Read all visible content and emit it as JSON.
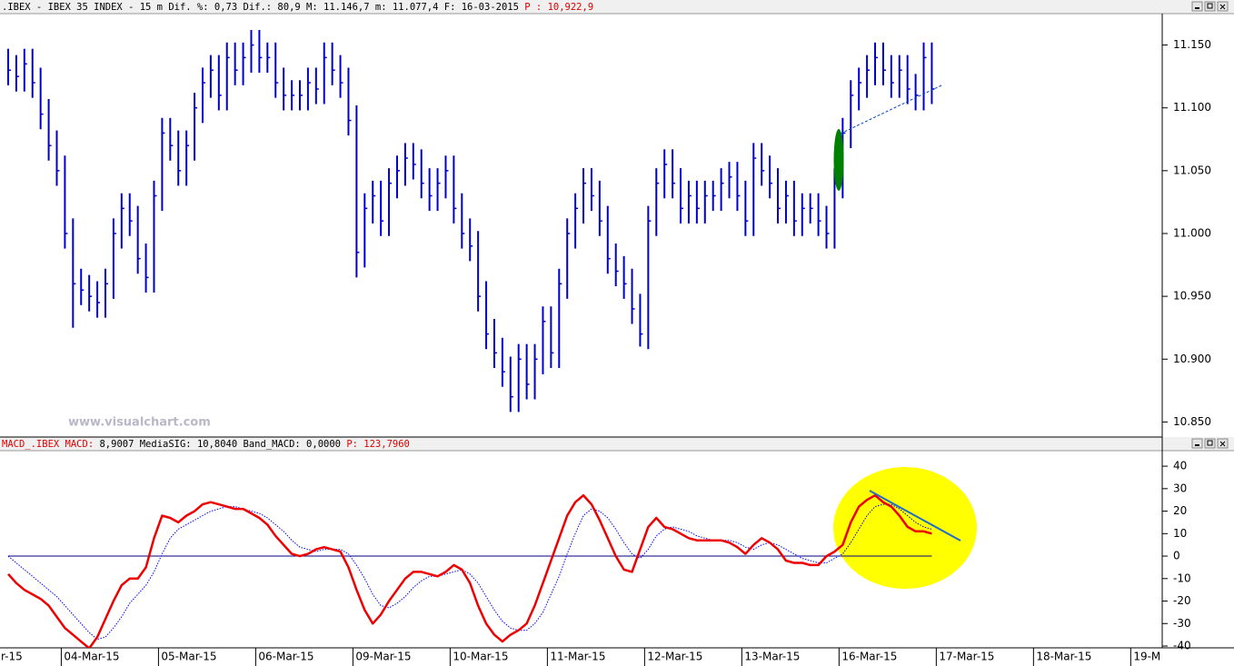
{
  "chart_data": [
    {
      "type": "hlc",
      "header": ".IBEX - IBEX 35 INDEX -  15 m Dif. %: 0,73 Dif.: 80,9 M: 11.146,7 m: 11.077,4 F: 16-03-2015",
      "header_price": "P : 10,922,9",
      "watermark": "www.visualchart.com",
      "color": "#0000cc",
      "xlim": [
        0,
        143
      ],
      "ylim": [
        10.838,
        11.175
      ],
      "yticks": [
        {
          "value": 10.85,
          "label": "10.850"
        },
        {
          "value": 10.9,
          "label": "10.900"
        },
        {
          "value": 10.95,
          "label": "10.950"
        },
        {
          "value": 11.0,
          "label": "11.000"
        },
        {
          "value": 11.05,
          "label": "11.050"
        },
        {
          "value": 11.1,
          "label": "11.100"
        },
        {
          "value": 11.15,
          "label": "11.150"
        }
      ],
      "high": [
        11.147,
        11.142,
        11.147,
        11.147,
        11.132,
        11.107,
        11.082,
        11.062,
        11.012,
        10.972,
        10.967,
        10.962,
        10.972,
        11.012,
        11.032,
        11.032,
        11.022,
        10.992,
        11.042,
        11.092,
        11.092,
        11.082,
        11.082,
        11.112,
        11.132,
        11.142,
        11.142,
        11.152,
        11.152,
        11.152,
        11.162,
        11.162,
        11.152,
        11.152,
        11.132,
        11.122,
        11.122,
        11.132,
        11.132,
        11.152,
        11.152,
        11.142,
        11.132,
        11.102,
        11.032,
        11.042,
        11.042,
        11.052,
        11.062,
        11.072,
        11.072,
        11.067,
        11.052,
        11.052,
        11.062,
        11.062,
        11.032,
        11.012,
        11.002,
        10.962,
        10.932,
        10.917,
        10.902,
        10.912,
        10.912,
        10.912,
        10.942,
        10.942,
        10.972,
        11.012,
        11.032,
        11.052,
        11.052,
        11.042,
        11.022,
        10.992,
        10.982,
        10.972,
        10.952,
        11.022,
        11.052,
        11.067,
        11.067,
        11.052,
        11.042,
        11.042,
        11.042,
        11.042,
        11.052,
        11.057,
        11.057,
        11.042,
        11.072,
        11.072,
        11.062,
        11.052,
        11.042,
        11.042,
        11.032,
        11.032,
        11.032,
        11.022,
        11.052,
        11.092,
        11.122,
        11.132,
        11.142,
        11.152,
        11.152,
        11.142,
        11.142,
        11.142,
        11.127,
        11.152,
        11.152
      ],
      "low": [
        11.118,
        11.113,
        11.113,
        11.108,
        11.083,
        11.058,
        11.038,
        10.988,
        10.925,
        10.943,
        10.938,
        10.933,
        10.933,
        10.948,
        10.988,
        10.998,
        10.968,
        10.953,
        10.953,
        11.018,
        11.058,
        11.038,
        11.038,
        11.058,
        11.088,
        11.108,
        11.098,
        11.098,
        11.118,
        11.118,
        11.128,
        11.128,
        11.128,
        11.108,
        11.098,
        11.098,
        11.098,
        11.098,
        11.103,
        11.103,
        11.118,
        11.108,
        11.078,
        10.965,
        10.973,
        11.008,
        10.998,
        10.998,
        11.028,
        11.038,
        11.043,
        11.028,
        11.018,
        11.018,
        11.028,
        11.008,
        10.988,
        10.978,
        10.938,
        10.908,
        10.893,
        10.878,
        10.858,
        10.858,
        10.868,
        10.868,
        10.888,
        10.893,
        10.893,
        10.948,
        10.988,
        11.008,
        11.018,
        10.998,
        10.968,
        10.958,
        10.948,
        10.928,
        10.91,
        10.908,
        10.998,
        11.028,
        11.028,
        11.008,
        11.008,
        11.008,
        11.008,
        11.018,
        11.018,
        11.028,
        11.018,
        10.998,
        10.998,
        11.038,
        11.028,
        11.008,
        11.008,
        10.998,
        10.998,
        11.008,
        10.998,
        10.988,
        10.988,
        11.028,
        11.068,
        11.098,
        11.108,
        11.118,
        11.118,
        11.108,
        11.108,
        11.103,
        11.098,
        11.098,
        11.103
      ],
      "close": [
        11.13,
        11.125,
        11.135,
        11.12,
        11.095,
        11.07,
        11.05,
        11.0,
        10.96,
        10.955,
        10.95,
        10.945,
        10.96,
        11.0,
        11.02,
        11.01,
        10.98,
        10.965,
        11.03,
        11.08,
        11.07,
        11.05,
        11.07,
        11.1,
        11.12,
        11.13,
        11.11,
        11.14,
        11.13,
        11.14,
        11.15,
        11.14,
        11.14,
        11.12,
        11.11,
        11.11,
        11.11,
        11.12,
        11.115,
        11.14,
        11.13,
        11.12,
        11.09,
        10.985,
        11.02,
        11.03,
        11.01,
        11.04,
        11.05,
        11.06,
        11.055,
        11.04,
        11.03,
        11.04,
        11.05,
        11.02,
        11.0,
        10.99,
        10.95,
        10.92,
        10.905,
        10.89,
        10.87,
        10.9,
        10.88,
        10.9,
        10.93,
        10.905,
        10.96,
        11.0,
        11.02,
        11.04,
        11.03,
        11.01,
        10.98,
        10.97,
        10.96,
        10.94,
        10.92,
        11.01,
        11.04,
        11.055,
        11.04,
        11.02,
        11.03,
        11.02,
        11.03,
        11.03,
        11.04,
        11.045,
        11.03,
        11.01,
        11.06,
        11.05,
        11.04,
        11.02,
        11.03,
        11.01,
        11.02,
        11.02,
        11.01,
        11.0,
        11.04,
        11.08,
        11.11,
        11.12,
        11.13,
        11.14,
        11.13,
        11.12,
        11.13,
        11.115,
        11.11,
        11.14,
        11.115
      ]
    },
    {
      "type": "line",
      "header": "MACD_.IBEX MACD:",
      "header_values": "8,9007 MediaSIG: 10,8040 Band_MACD: 0,0000",
      "header_price": "P: 123,7960",
      "xlim": [
        0,
        143
      ],
      "ylim": [
        -40.8,
        46.5
      ],
      "yticks": [
        -40,
        -30,
        -20,
        -10,
        0,
        10,
        20,
        30,
        40
      ],
      "band": 0,
      "band_color": "#000080",
      "xticks": [
        {
          "value": -5,
          "label": "r-15"
        },
        {
          "value": 7,
          "label": "04-Mar-15"
        },
        {
          "value": 19,
          "label": "05-Mar-15"
        },
        {
          "value": 31,
          "label": "06-Mar-15"
        },
        {
          "value": 43,
          "label": "09-Mar-15"
        },
        {
          "value": 55,
          "label": "10-Mar-15"
        },
        {
          "value": 67,
          "label": "11-Mar-15"
        },
        {
          "value": 79,
          "label": "12-Mar-15"
        },
        {
          "value": 91,
          "label": "13-Mar-15"
        },
        {
          "value": 103,
          "label": "16-Mar-15"
        },
        {
          "value": 115,
          "label": "17-Mar-15"
        },
        {
          "value": 127,
          "label": "18-Mar-15"
        },
        {
          "value": 139,
          "label": "19-M"
        }
      ],
      "series": [
        {
          "color": "#0000ff",
          "style": "dotted",
          "values": [
            0,
            -3,
            -6,
            -9,
            -12,
            -15,
            -18,
            -22,
            -26,
            -30,
            -34,
            -37,
            -36,
            -32,
            -27,
            -21,
            -17,
            -13,
            -7,
            1,
            8,
            12,
            14,
            16,
            18,
            20,
            21,
            22,
            22,
            21,
            20,
            19,
            17,
            14,
            11,
            7,
            4,
            3,
            2,
            3,
            3,
            3,
            1,
            -4,
            -10,
            -17,
            -22,
            -23,
            -21,
            -18,
            -14,
            -11,
            -9,
            -9,
            -8,
            -7,
            -6,
            -8,
            -12,
            -18,
            -24,
            -29,
            -32,
            -33,
            -33,
            -30,
            -25,
            -17,
            -9,
            1,
            10,
            18,
            21,
            20,
            17,
            12,
            6,
            1,
            -1,
            3,
            9,
            12,
            13,
            12,
            11,
            9,
            8,
            7,
            7,
            7,
            6,
            4,
            3,
            5,
            6,
            5,
            3,
            1,
            -1,
            -2,
            -3,
            -3,
            -1,
            1,
            6,
            12,
            18,
            22,
            23,
            23,
            21,
            18,
            15,
            13,
            12
          ]
        },
        {
          "color": "#ee0000",
          "style": "solid",
          "values": [
            -8,
            -12,
            -15,
            -17,
            -19,
            -22,
            -27,
            -32,
            -35,
            -38,
            -41,
            -36,
            -28,
            -20,
            -13,
            -10,
            -10,
            -5,
            8,
            18,
            17,
            15,
            18,
            20,
            23,
            24,
            23,
            22,
            21,
            21,
            19,
            17,
            14,
            9,
            5,
            1,
            0,
            1,
            3,
            4,
            3,
            2,
            -5,
            -15,
            -24,
            -30,
            -26,
            -20,
            -15,
            -10,
            -7,
            -7,
            -8,
            -9,
            -7,
            -4,
            -6,
            -12,
            -22,
            -30,
            -35,
            -38,
            -35,
            -33,
            -30,
            -22,
            -12,
            -2,
            8,
            18,
            24,
            27,
            23,
            16,
            8,
            0,
            -6,
            -7,
            3,
            13,
            17,
            13,
            12,
            10,
            8,
            7,
            7,
            7,
            7,
            6,
            4,
            1,
            5,
            8,
            6,
            3,
            -2,
            -3,
            -3,
            -4,
            -4,
            0,
            2,
            5,
            15,
            22,
            25,
            27,
            24,
            22,
            18,
            13,
            11,
            11,
            10
          ]
        }
      ]
    }
  ]
}
